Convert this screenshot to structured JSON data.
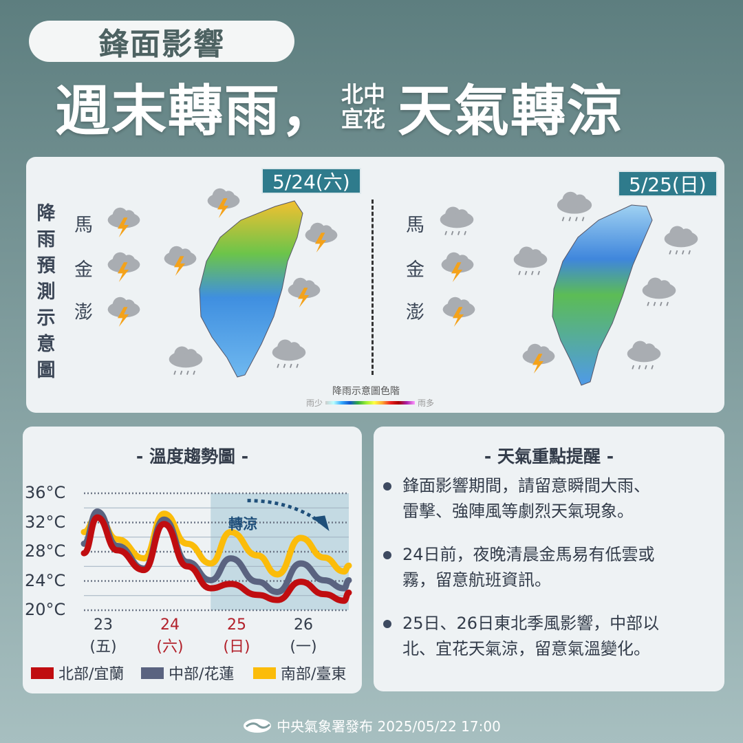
{
  "header": {
    "tag": "鋒面影響",
    "title_part1": "週末轉雨，",
    "title_small_top": "北中",
    "title_small_bottom": "宜花",
    "title_part2": "天氣轉涼"
  },
  "rain_map": {
    "vertical_label": "降雨預測示意圖",
    "islands": [
      "馬",
      "金",
      "澎"
    ],
    "days": [
      {
        "date": "5/24(六)"
      },
      {
        "date": "5/25(日)"
      }
    ],
    "legend_title": "降雨示意圖色階",
    "legend_low": "雨少",
    "legend_high": "雨多"
  },
  "temp_chart": {
    "heading": "- 溫度趨勢圖 -",
    "annotation": "轉涼",
    "chart_data": {
      "type": "line",
      "ylim": [
        20,
        36
      ],
      "y_ticks": [
        "36°C",
        "32°C",
        "28°C",
        "24°C",
        "20°C"
      ],
      "y_tick_values": [
        36,
        32,
        28,
        24,
        20
      ],
      "x_ticks": [
        {
          "day": "23",
          "weekday": "(五)",
          "x": 23,
          "color": "#333c4a"
        },
        {
          "day": "24",
          "weekday": "(六)",
          "x": 24,
          "color": "#b2202a"
        },
        {
          "day": "25",
          "weekday": "(日)",
          "x": 25,
          "color": "#b2202a"
        },
        {
          "day": "26",
          "weekday": "(一)",
          "x": 26,
          "color": "#333c4a"
        }
      ],
      "xlim": [
        22.7,
        26.67
      ],
      "shaded_from": 24.6,
      "grid": true,
      "legend_position": "bottom",
      "x": [
        22.7,
        22.9,
        23.2,
        23.6,
        23.9,
        24.25,
        24.6,
        24.9,
        25.3,
        25.6,
        25.95,
        26.3,
        26.6,
        26.67
      ],
      "series": [
        {
          "name": "北部/宜蘭",
          "color": "#c00d10",
          "values": [
            27.8,
            32.7,
            28.2,
            25.5,
            31.8,
            26.0,
            23.0,
            23.6,
            22.1,
            21.4,
            23.9,
            22.2,
            21.3,
            22.4
          ]
        },
        {
          "name": "中部/花蓮",
          "color": "#5a6380",
          "values": [
            29.1,
            33.5,
            28.8,
            25.7,
            32.4,
            26.6,
            24.1,
            27.1,
            23.9,
            22.5,
            26.4,
            24.1,
            23.0,
            24.1
          ]
        },
        {
          "name": "南部/臺東",
          "color": "#fbbc0a",
          "values": [
            30.7,
            32.9,
            29.7,
            27.1,
            33.2,
            29.1,
            26.4,
            30.7,
            27.5,
            24.9,
            29.9,
            27.2,
            25.3,
            26.1
          ]
        }
      ]
    }
  },
  "notes": {
    "heading": "- 天氣重點提醒 -",
    "items": [
      {
        "l1": "鋒面影響期間，請留意瞬間大雨、",
        "l2": "雷擊、強陣風等劇烈天氣現象。"
      },
      {
        "l1": "24日前，夜晚清晨金馬易有低雲或",
        "l2": "霧，留意航班資訊。"
      },
      {
        "l1": "25日、26日東北季風影響，中部以",
        "l2": "北、宜花天氣涼，留意氣溫變化。"
      }
    ]
  },
  "footer": {
    "text": "中央氣象署發布 2025/05/22 17:00"
  }
}
